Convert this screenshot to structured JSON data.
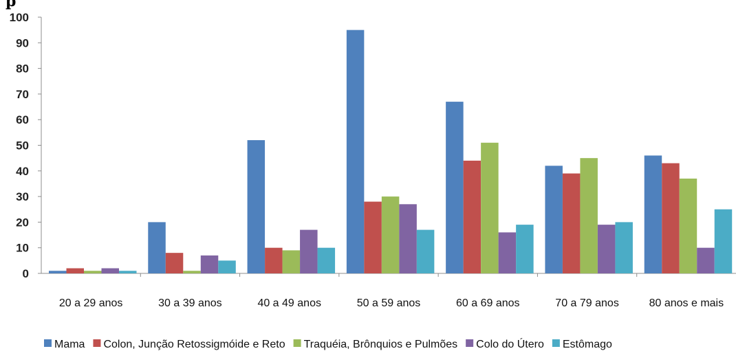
{
  "title": "p",
  "chart_data": {
    "type": "bar",
    "title": "",
    "xlabel": "",
    "ylabel": "",
    "ylim": [
      0,
      100
    ],
    "yticks": [
      0,
      10,
      20,
      30,
      40,
      50,
      60,
      70,
      80,
      90,
      100
    ],
    "grid": false,
    "legend_position": "bottom",
    "categories": [
      "20 a 29 anos",
      "30 a 39 anos",
      "40 a 49 anos",
      "50 a 59 anos",
      "60 a 69 anos",
      "70 a 79 anos",
      "80 anos e mais"
    ],
    "series": [
      {
        "name": "Mama",
        "color": "#4F81BD",
        "values": [
          1,
          20,
          52,
          95,
          67,
          42,
          46
        ]
      },
      {
        "name": "Colon, Junção  Retossigmóide  e Reto",
        "color": "#C0504D",
        "values": [
          2,
          8,
          10,
          28,
          44,
          39,
          43
        ]
      },
      {
        "name": "Traquéia, Brônquios e Pulmões",
        "color": "#9BBB59",
        "values": [
          1,
          1,
          9,
          30,
          51,
          45,
          37
        ]
      },
      {
        "name": "Colo do Útero",
        "color": "#8064A2",
        "values": [
          2,
          7,
          17,
          27,
          16,
          19,
          10
        ]
      },
      {
        "name": "Estômago",
        "color": "#4BACC6",
        "values": [
          1,
          5,
          10,
          17,
          19,
          20,
          25
        ]
      }
    ]
  }
}
